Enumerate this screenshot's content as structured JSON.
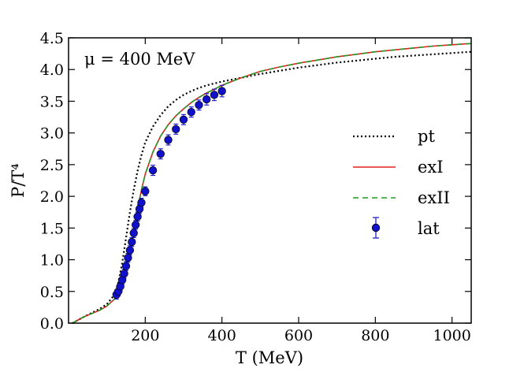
{
  "chart_data": {
    "type": "line",
    "title": "",
    "annotation": "μ = 400 MeV",
    "xlabel": "T (MeV)",
    "ylabel": "P/T⁴",
    "xlim": [
      0,
      1050
    ],
    "ylim": [
      0,
      4.5
    ],
    "x_ticks": [
      200,
      400,
      600,
      800,
      1000
    ],
    "y_ticks": [
      0.0,
      0.5,
      1.0,
      1.5,
      2.0,
      2.5,
      3.0,
      3.5,
      4.0,
      4.5
    ],
    "x_tick_labels": [
      "200",
      "400",
      "600",
      "800",
      "1000"
    ],
    "y_tick_labels": [
      "0.0",
      "0.5",
      "1.0",
      "1.5",
      "2.0",
      "2.5",
      "3.0",
      "3.5",
      "4.0",
      "4.5"
    ],
    "legend_position": "right",
    "series": [
      {
        "name": "pt",
        "style": "dotted",
        "color": "#000000",
        "x": [
          10,
          40,
          80,
          100,
          120,
          130,
          140,
          150,
          160,
          170,
          180,
          190,
          200,
          220,
          240,
          260,
          280,
          300,
          320,
          340,
          360,
          380,
          400,
          450,
          500,
          550,
          600,
          650,
          700,
          750,
          800,
          850,
          900,
          950,
          1000,
          1050
        ],
        "y": [
          0.0,
          0.1,
          0.22,
          0.3,
          0.45,
          0.65,
          0.95,
          1.35,
          1.75,
          2.1,
          2.4,
          2.65,
          2.85,
          3.1,
          3.28,
          3.42,
          3.52,
          3.6,
          3.66,
          3.71,
          3.75,
          3.78,
          3.81,
          3.87,
          3.93,
          3.98,
          4.03,
          4.07,
          4.11,
          4.14,
          4.17,
          4.2,
          4.22,
          4.24,
          4.26,
          4.28
        ]
      },
      {
        "name": "exI",
        "style": "solid",
        "color": "#dd2222",
        "x": [
          10,
          40,
          80,
          100,
          120,
          140,
          160,
          170,
          180,
          190,
          200,
          220,
          240,
          260,
          280,
          300,
          320,
          340,
          360,
          380,
          400,
          450,
          500,
          550,
          600,
          650,
          700,
          750,
          800,
          850,
          900,
          950,
          1000,
          1050
        ],
        "y": [
          0.0,
          0.1,
          0.2,
          0.27,
          0.38,
          0.6,
          1.1,
          1.45,
          1.8,
          2.1,
          2.35,
          2.7,
          2.95,
          3.13,
          3.27,
          3.38,
          3.48,
          3.56,
          3.63,
          3.69,
          3.75,
          3.87,
          3.97,
          4.04,
          4.1,
          4.15,
          4.2,
          4.24,
          4.28,
          4.31,
          4.34,
          4.37,
          4.39,
          4.41
        ]
      },
      {
        "name": "exII",
        "style": "dashed",
        "color": "#229922",
        "x": [
          10,
          40,
          80,
          100,
          120,
          140,
          160,
          170,
          180,
          190,
          200,
          220,
          240,
          260,
          280,
          300,
          320,
          340,
          360,
          380,
          400,
          450,
          500,
          550,
          600,
          650,
          700,
          750,
          800,
          850,
          900,
          950,
          1000,
          1050
        ],
        "y": [
          0.0,
          0.1,
          0.2,
          0.27,
          0.38,
          0.6,
          1.1,
          1.45,
          1.8,
          2.1,
          2.35,
          2.7,
          2.95,
          3.13,
          3.27,
          3.38,
          3.48,
          3.56,
          3.63,
          3.69,
          3.75,
          3.87,
          3.97,
          4.04,
          4.1,
          4.15,
          4.2,
          4.24,
          4.28,
          4.31,
          4.34,
          4.37,
          4.39,
          4.41
        ]
      },
      {
        "name": "lat",
        "style": "markers",
        "color": "#1111cc",
        "x": [
          125,
          130,
          135,
          140,
          145,
          150,
          155,
          160,
          165,
          170,
          175,
          180,
          185,
          190,
          200,
          220,
          240,
          260,
          280,
          300,
          320,
          340,
          360,
          380,
          400
        ],
        "y": [
          0.45,
          0.5,
          0.58,
          0.68,
          0.78,
          0.9,
          1.03,
          1.15,
          1.28,
          1.42,
          1.55,
          1.68,
          1.8,
          1.9,
          2.08,
          2.41,
          2.67,
          2.89,
          3.06,
          3.21,
          3.33,
          3.44,
          3.53,
          3.6,
          3.66
        ],
        "yerr": [
          0.07,
          0.07,
          0.07,
          0.07,
          0.07,
          0.07,
          0.07,
          0.07,
          0.07,
          0.07,
          0.07,
          0.07,
          0.07,
          0.07,
          0.07,
          0.08,
          0.08,
          0.08,
          0.08,
          0.08,
          0.08,
          0.08,
          0.09,
          0.09,
          0.09
        ]
      }
    ]
  }
}
